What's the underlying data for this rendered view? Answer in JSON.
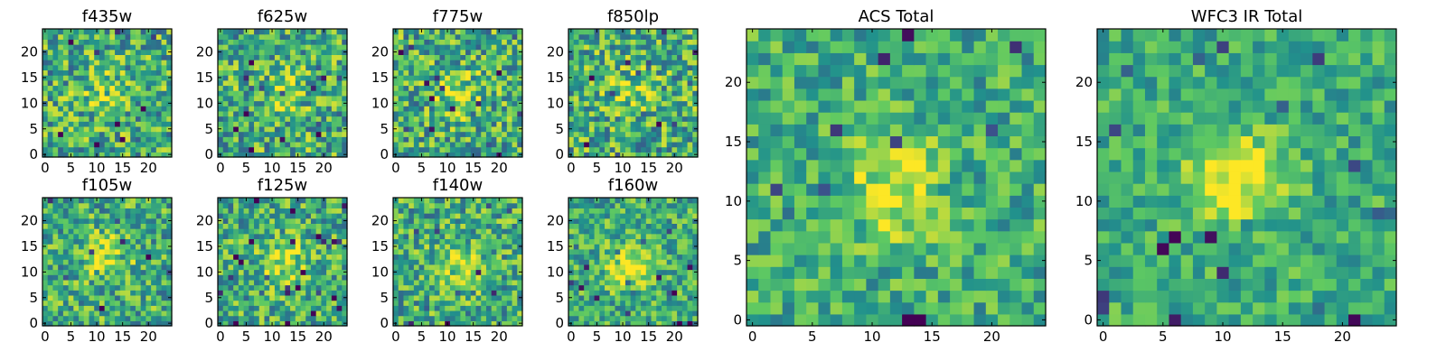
{
  "figure": {
    "colormap": "viridis",
    "colormap_stops": [
      "#440154",
      "#3b528b",
      "#21918c",
      "#5ec962",
      "#fde725"
    ]
  },
  "chart_data": [
    {
      "id": "f435w",
      "type": "heatmap",
      "title": "f435w",
      "grid_size": [
        25,
        25
      ],
      "xlim": [
        0,
        24
      ],
      "ylim": [
        0,
        24
      ],
      "x_ticks": [
        0,
        5,
        10,
        15,
        20
      ],
      "y_ticks": [
        0,
        5,
        10,
        15,
        20
      ],
      "pattern": "noise with faint central source",
      "seed": 11,
      "source_center": [
        12,
        12
      ],
      "source_sigma": 3.5,
      "source_amplitude": 0.15,
      "noise_level": 0.5
    },
    {
      "id": "f625w",
      "type": "heatmap",
      "title": "f625w",
      "grid_size": [
        25,
        25
      ],
      "xlim": [
        0,
        24
      ],
      "ylim": [
        0,
        24
      ],
      "x_ticks": [
        0,
        5,
        10,
        15,
        20
      ],
      "y_ticks": [
        0,
        5,
        10,
        15,
        20
      ],
      "pattern": "noise with faint central source",
      "seed": 23,
      "source_center": [
        12,
        12
      ],
      "source_sigma": 3.5,
      "source_amplitude": 0.15,
      "noise_level": 0.5
    },
    {
      "id": "f775w",
      "type": "heatmap",
      "title": "f775w",
      "grid_size": [
        25,
        25
      ],
      "xlim": [
        0,
        24
      ],
      "ylim": [
        0,
        24
      ],
      "x_ticks": [
        0,
        5,
        10,
        15,
        20
      ],
      "y_ticks": [
        0,
        5,
        10,
        15,
        20
      ],
      "pattern": "noise with faint central source",
      "seed": 37,
      "source_center": [
        12,
        12
      ],
      "source_sigma": 3.0,
      "source_amplitude": 0.25,
      "noise_level": 0.5
    },
    {
      "id": "f850lp",
      "type": "heatmap",
      "title": "f850lp",
      "grid_size": [
        25,
        25
      ],
      "xlim": [
        0,
        24
      ],
      "ylim": [
        0,
        24
      ],
      "x_ticks": [
        0,
        5,
        10,
        15,
        20
      ],
      "y_ticks": [
        0,
        5,
        10,
        15,
        20
      ],
      "pattern": "noise with faint central source",
      "seed": 41,
      "source_center": [
        12,
        12
      ],
      "source_sigma": 3.5,
      "source_amplitude": 0.15,
      "noise_level": 0.5
    },
    {
      "id": "f105w",
      "type": "heatmap",
      "title": "f105w",
      "grid_size": [
        25,
        25
      ],
      "xlim": [
        0,
        24
      ],
      "ylim": [
        0,
        24
      ],
      "x_ticks": [
        0,
        5,
        10,
        15,
        20
      ],
      "y_ticks": [
        0,
        5,
        10,
        15,
        20
      ],
      "pattern": "noise with central source",
      "seed": 53,
      "source_center": [
        12,
        13
      ],
      "source_sigma": 3.0,
      "source_amplitude": 0.3,
      "noise_level": 0.45
    },
    {
      "id": "f125w",
      "type": "heatmap",
      "title": "f125w",
      "grid_size": [
        25,
        25
      ],
      "xlim": [
        0,
        24
      ],
      "ylim": [
        0,
        24
      ],
      "x_ticks": [
        0,
        5,
        10,
        15,
        20
      ],
      "y_ticks": [
        0,
        5,
        10,
        15,
        20
      ],
      "pattern": "noise with central source",
      "seed": 67,
      "source_center": [
        12,
        12
      ],
      "source_sigma": 3.0,
      "source_amplitude": 0.3,
      "noise_level": 0.45
    },
    {
      "id": "f140w",
      "type": "heatmap",
      "title": "f140w",
      "grid_size": [
        25,
        25
      ],
      "xlim": [
        0,
        24
      ],
      "ylim": [
        0,
        24
      ],
      "x_ticks": [
        0,
        5,
        10,
        15,
        20
      ],
      "y_ticks": [
        0,
        5,
        10,
        15,
        20
      ],
      "pattern": "noise with central source",
      "seed": 79,
      "source_center": [
        12,
        11
      ],
      "source_sigma": 3.0,
      "source_amplitude": 0.3,
      "noise_level": 0.45
    },
    {
      "id": "f160w",
      "type": "heatmap",
      "title": "f160w",
      "grid_size": [
        25,
        25
      ],
      "xlim": [
        0,
        24
      ],
      "ylim": [
        0,
        24
      ],
      "x_ticks": [
        0,
        5,
        10,
        15,
        20
      ],
      "y_ticks": [
        0,
        5,
        10,
        15,
        20
      ],
      "pattern": "noise with bright central source",
      "seed": 83,
      "source_center": [
        11,
        11
      ],
      "source_sigma": 2.8,
      "source_amplitude": 0.45,
      "noise_level": 0.4
    },
    {
      "id": "acs-total",
      "type": "heatmap",
      "title": "ACS Total",
      "grid_size": [
        25,
        25
      ],
      "xlim": [
        0,
        24
      ],
      "ylim": [
        0,
        24
      ],
      "x_ticks": [
        0,
        5,
        10,
        15,
        20
      ],
      "y_ticks": [
        0,
        5,
        10,
        15,
        20
      ],
      "pattern": "stacked noise with central source",
      "seed": 97,
      "source_center": [
        12,
        11
      ],
      "source_sigma": 2.8,
      "source_amplitude": 0.35,
      "noise_level": 0.35
    },
    {
      "id": "wfc3-ir-total",
      "type": "heatmap",
      "title": "WFC3 IR Total",
      "grid_size": [
        25,
        25
      ],
      "xlim": [
        0,
        24
      ],
      "ylim": [
        0,
        24
      ],
      "x_ticks": [
        0,
        5,
        10,
        15,
        20
      ],
      "y_ticks": [
        0,
        5,
        10,
        15,
        20
      ],
      "pattern": "stacked noise with bright central source",
      "seed": 101,
      "source_center": [
        11,
        12
      ],
      "source_sigma": 2.6,
      "source_amplitude": 0.45,
      "noise_level": 0.3
    }
  ]
}
